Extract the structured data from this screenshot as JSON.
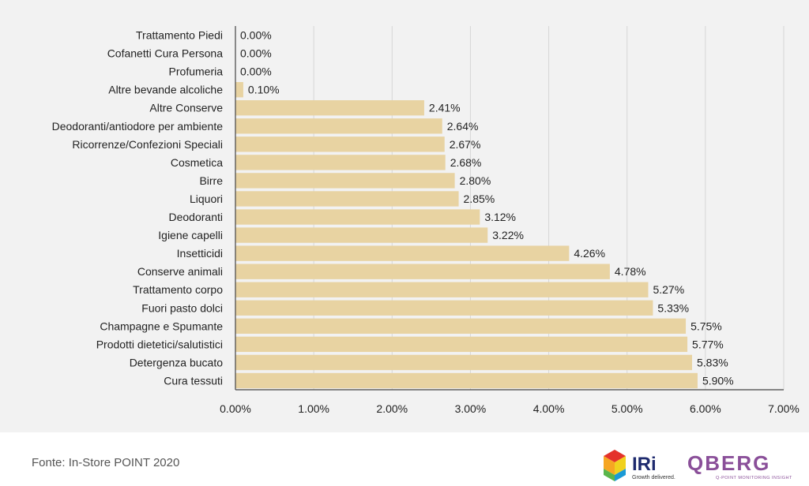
{
  "chart_data": {
    "type": "bar",
    "orientation": "horizontal",
    "categories": [
      "Trattamento Piedi",
      "Cofanetti Cura Persona",
      "Profumeria",
      "Altre bevande alcoliche",
      "Altre Conserve",
      "Deodoranti/antiodore per ambiente",
      "Ricorrenze/Confezioni Speciali",
      "Cosmetica",
      "Birre",
      "Liquori",
      "Deodoranti",
      "Igiene capelli",
      "Insetticidi",
      "Conserve animali",
      "Trattamento corpo",
      "Fuori pasto dolci",
      "Champagne e Spumante",
      "Prodotti dietetici/salutistici",
      "Detergenza bucato",
      "Cura tessuti"
    ],
    "values": [
      0.0,
      0.0,
      0.0,
      0.1,
      2.41,
      2.64,
      2.67,
      2.68,
      2.8,
      2.85,
      3.12,
      3.22,
      4.26,
      4.78,
      5.27,
      5.33,
      5.75,
      5.77,
      5.83,
      5.9
    ],
    "value_labels": [
      "0.00%",
      "0.00%",
      "0.00%",
      "0.10%",
      "2.41%",
      "2.64%",
      "2.67%",
      "2.68%",
      "2.80%",
      "2.85%",
      "3.12%",
      "3.22%",
      "4.26%",
      "4.78%",
      "5.27%",
      "5.33%",
      "5.75%",
      "5.77%",
      "5.83%",
      "5.90%"
    ],
    "x_ticks": [
      "0.00%",
      "1.00%",
      "2.00%",
      "3.00%",
      "4.00%",
      "5.00%",
      "6.00%",
      "7.00%"
    ],
    "xlim": [
      0,
      7
    ],
    "grid": "vertical",
    "legend": "none",
    "bar_color": "#e8d3a2",
    "grid_color": "#d6d6d6",
    "axis_color": "#444444"
  },
  "footer": {
    "source": "Fonte: In-Store POINT 2020"
  },
  "logos": {
    "iri_text": "IRi",
    "iri_tagline": "Growth delivered.",
    "qberg_text": "QBERG",
    "qberg_tagline": "Q-POINT MONITORING INSIGHT",
    "iri_colors": [
      "#e4322b",
      "#f6a623",
      "#f0d11e",
      "#5ab54b",
      "#1b9ad6",
      "#6c3c96",
      "#1e2a6e"
    ],
    "qberg_color": "#8a4f99"
  }
}
